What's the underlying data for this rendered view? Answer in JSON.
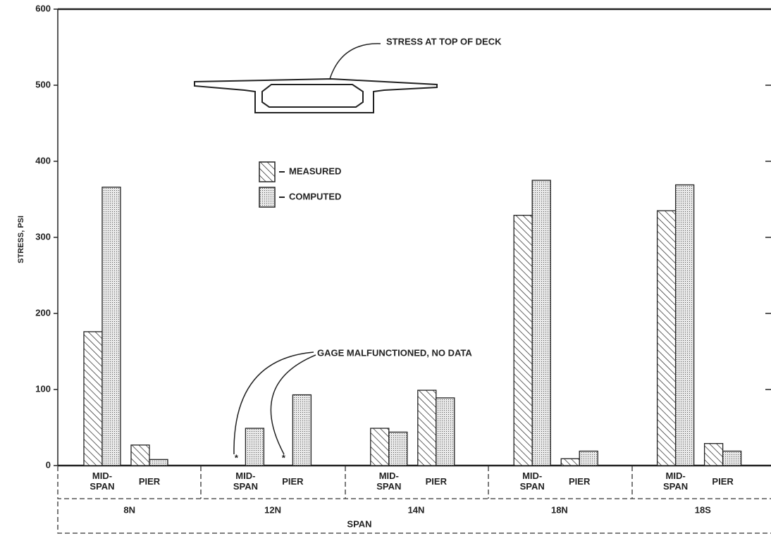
{
  "chart_data": {
    "type": "bar",
    "ylabel": "STRESS, PSI",
    "xlabel": "SPAN",
    "ylim": [
      0,
      600
    ],
    "yticks": [
      0,
      100,
      200,
      300,
      400,
      500,
      600
    ],
    "groups": [
      "8N",
      "12N",
      "14N",
      "18N",
      "18S"
    ],
    "categories": [
      "MID-\nSPAN",
      "PIER",
      "MID-\nSPAN",
      "PIER",
      "MID-\nSPAN",
      "PIER",
      "MID-\nSPAN",
      "PIER",
      "MID-\nSPAN",
      "PIER"
    ],
    "series": [
      {
        "name": "MEASURED",
        "color": "#222222",
        "pattern": "hatch",
        "values": [
          176,
          27,
          null,
          null,
          49,
          99,
          329,
          9,
          335,
          29
        ]
      },
      {
        "name": "COMPUTED",
        "color": "#222222",
        "pattern": "dots",
        "values": [
          366,
          8,
          49,
          93,
          44,
          89,
          375,
          19,
          369,
          19
        ]
      }
    ],
    "null_marker": "*",
    "annotations": [
      "STRESS AT TOP OF DECK",
      "GAGE MALFUNCTIONED, NO DATA"
    ]
  }
}
